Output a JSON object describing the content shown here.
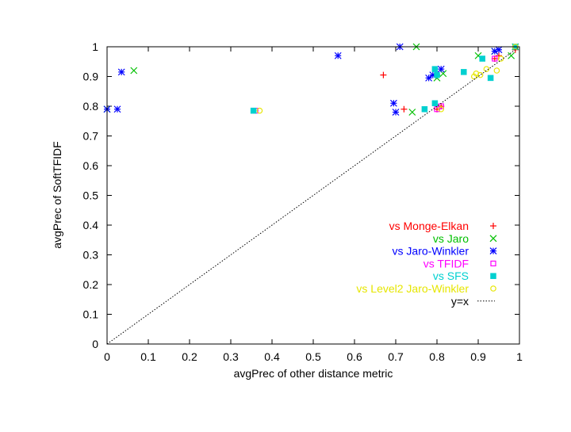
{
  "chart_data": {
    "type": "scatter",
    "xlabel": "avgPrec of other distance metric",
    "ylabel": "avgPrec of SoftTFIDF",
    "xlim": [
      0,
      1
    ],
    "ylim": [
      0,
      1
    ],
    "xticks": [
      "0",
      "0.1",
      "0.2",
      "0.3",
      "0.4",
      "0.5",
      "0.6",
      "0.7",
      "0.8",
      "0.9",
      "1"
    ],
    "yticks": [
      "0",
      "0.1",
      "0.2",
      "0.3",
      "0.4",
      "0.5",
      "0.6",
      "0.7",
      "0.8",
      "0.9",
      "1"
    ],
    "grid": false,
    "legend_position": "bottom-right",
    "series": [
      {
        "name": "vs Monge-Elkan",
        "color": "#ff0000",
        "marker": "plus",
        "points": [
          [
            0.67,
            0.905
          ],
          [
            0.72,
            0.79
          ],
          [
            0.8,
            0.79
          ],
          [
            0.81,
            0.8
          ],
          [
            0.94,
            0.96
          ],
          [
            0.95,
            0.97
          ],
          [
            0.99,
            0.99
          ]
        ]
      },
      {
        "name": "vs Jaro",
        "color": "#00c000",
        "marker": "cross",
        "points": [
          [
            0.0,
            0.79
          ],
          [
            0.065,
            0.92
          ],
          [
            0.74,
            0.78
          ],
          [
            0.75,
            1.0
          ],
          [
            0.8,
            0.895
          ],
          [
            0.815,
            0.91
          ],
          [
            0.9,
            0.97
          ],
          [
            0.94,
            0.985
          ],
          [
            0.98,
            0.97
          ],
          [
            0.99,
            1.0
          ]
        ]
      },
      {
        "name": "vs Jaro-Winkler",
        "color": "#0000ff",
        "marker": "star",
        "points": [
          [
            0.0,
            0.79
          ],
          [
            0.025,
            0.79
          ],
          [
            0.035,
            0.915
          ],
          [
            0.56,
            0.97
          ],
          [
            0.695,
            0.81
          ],
          [
            0.7,
            0.78
          ],
          [
            0.71,
            1.0
          ],
          [
            0.78,
            0.895
          ],
          [
            0.79,
            0.905
          ],
          [
            0.81,
            0.925
          ],
          [
            0.94,
            0.985
          ],
          [
            0.95,
            0.99
          ]
        ]
      },
      {
        "name": "vs TFIDF",
        "color": "#ff00ff",
        "marker": "square-open",
        "points": [
          [
            0.36,
            0.785
          ],
          [
            0.8,
            0.79
          ],
          [
            0.81,
            0.8
          ],
          [
            0.94,
            0.96
          ],
          [
            0.99,
            1.0
          ]
        ]
      },
      {
        "name": "vs SFS",
        "color": "#00d0d0",
        "marker": "square-filled",
        "points": [
          [
            0.355,
            0.785
          ],
          [
            0.77,
            0.79
          ],
          [
            0.795,
            0.81
          ],
          [
            0.795,
            0.925
          ],
          [
            0.8,
            0.905
          ],
          [
            0.865,
            0.915
          ],
          [
            0.91,
            0.96
          ],
          [
            0.93,
            0.895
          ],
          [
            0.99,
            1.0
          ]
        ]
      },
      {
        "name": "vs Level2 Jaro-Winkler",
        "color": "#e6e600",
        "marker": "circle-open",
        "points": [
          [
            0.37,
            0.785
          ],
          [
            0.81,
            0.79
          ],
          [
            0.89,
            0.9
          ],
          [
            0.895,
            0.91
          ],
          [
            0.905,
            0.905
          ],
          [
            0.92,
            0.925
          ],
          [
            0.945,
            0.92
          ],
          [
            0.955,
            0.96
          ],
          [
            0.99,
            1.0
          ]
        ]
      },
      {
        "name": "y=x",
        "color": "#000000",
        "marker": "line-dotted",
        "line": [
          [
            0,
            0
          ],
          [
            1,
            1
          ]
        ]
      }
    ]
  }
}
